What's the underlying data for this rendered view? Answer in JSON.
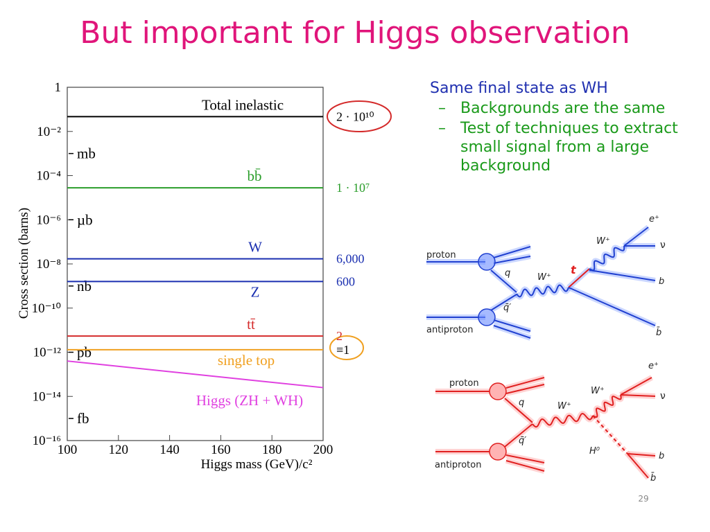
{
  "title": "But important for Higgs observation",
  "chart_data": {
    "type": "line",
    "xlabel": "Higgs mass (GeV)/c²",
    "ylabel": "Cross section (barns)",
    "x": [
      100,
      200
    ],
    "xlim": [
      100,
      200
    ],
    "xticks": [
      100,
      120,
      140,
      160,
      180,
      200
    ],
    "ylim": [
      1e-16,
      1
    ],
    "log_y": true,
    "yticks": [
      1,
      {
        "value": 0.01,
        "label": "10⁻²"
      },
      {
        "value": 0.0001,
        "label": "10⁻⁴"
      },
      {
        "value": 1e-06,
        "label": "10⁻⁶"
      },
      {
        "value": 1e-08,
        "label": "10⁻⁸"
      },
      {
        "value": 1e-10,
        "label": "10⁻¹⁰"
      },
      {
        "value": 1e-12,
        "label": "10⁻¹²"
      },
      {
        "value": 1e-14,
        "label": "10⁻¹⁴"
      },
      {
        "value": 1e-16,
        "label": "10⁻¹⁶"
      }
    ],
    "unit_labels": [
      {
        "text": "mb",
        "value": 0.001
      },
      {
        "text": "µb",
        "value": 1e-06
      },
      {
        "text": "nb",
        "value": 1e-09
      },
      {
        "text": "pb",
        "value": 1e-12
      },
      {
        "text": "fb",
        "value": 1e-15
      }
    ],
    "series": [
      {
        "name": "Total inelastic",
        "color": "#000000",
        "values": [
          0.047,
          0.047
        ],
        "side_label": "2 · 10¹⁰"
      },
      {
        "name": "bb̄",
        "color": "#2a9d2a",
        "values": [
          2.8e-05,
          2.8e-05
        ],
        "side_label": "1 · 10⁷"
      },
      {
        "name": "W",
        "color": "#1a2fb0",
        "values": [
          1.7e-08,
          1.7e-08
        ],
        "side_label": "6,000"
      },
      {
        "name": "Z",
        "color": "#1a2fb0",
        "values": [
          1.6e-09,
          1.6e-09
        ],
        "side_label": "600"
      },
      {
        "name": "tt̄",
        "color": "#d42a2a",
        "values": [
          5.4e-12,
          5.4e-12
        ],
        "side_label": "2"
      },
      {
        "name": "single top",
        "color": "#f0a020",
        "values": [
          1.3e-12,
          1.3e-12
        ],
        "side_label": "≡1"
      },
      {
        "name": "Higgs (ZH + WH)",
        "color": "#e040e0",
        "values": [
          4e-13,
          2.5e-14
        ]
      }
    ]
  },
  "bullets": {
    "main": "Same final state as WH",
    "sub": [
      "Backgrounds are the same",
      "Test of techniques to extract small signal from a large background"
    ]
  },
  "diagrams": [
    {
      "labels": [
        "proton",
        "antiproton",
        "q",
        "q̄′",
        "W⁺",
        "t",
        "W⁺",
        "e⁺",
        "ν",
        "b",
        "b̄"
      ]
    },
    {
      "labels": [
        "proton",
        "antiproton",
        "q",
        "q̄′",
        "W⁺",
        "W⁺",
        "H⁰",
        "e⁺",
        "ν",
        "b",
        "b̄"
      ]
    }
  ],
  "page_number": "29"
}
